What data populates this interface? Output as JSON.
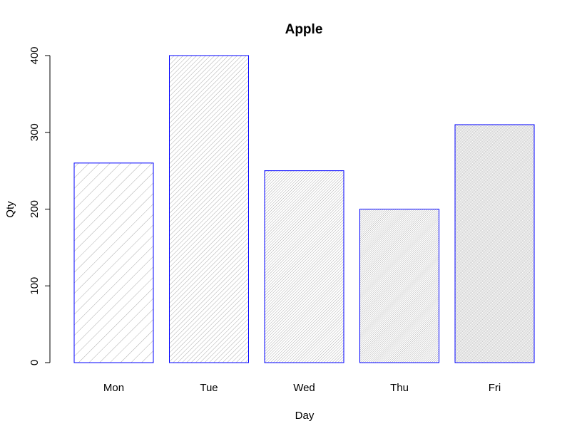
{
  "chart_data": {
    "type": "bar",
    "title": "Apple",
    "xlabel": "Day",
    "ylabel": "Qty",
    "categories": [
      "Mon",
      "Tue",
      "Wed",
      "Thu",
      "Fri"
    ],
    "values": [
      260,
      400,
      250,
      200,
      310
    ],
    "ylim": [
      0,
      400
    ],
    "yticks": [
      0,
      100,
      200,
      300,
      400
    ],
    "grid": false,
    "bar_border_color": "#0000ff",
    "hatch_color": "#999999",
    "hatch_density": [
      12,
      28,
      45,
      60,
      80
    ]
  }
}
